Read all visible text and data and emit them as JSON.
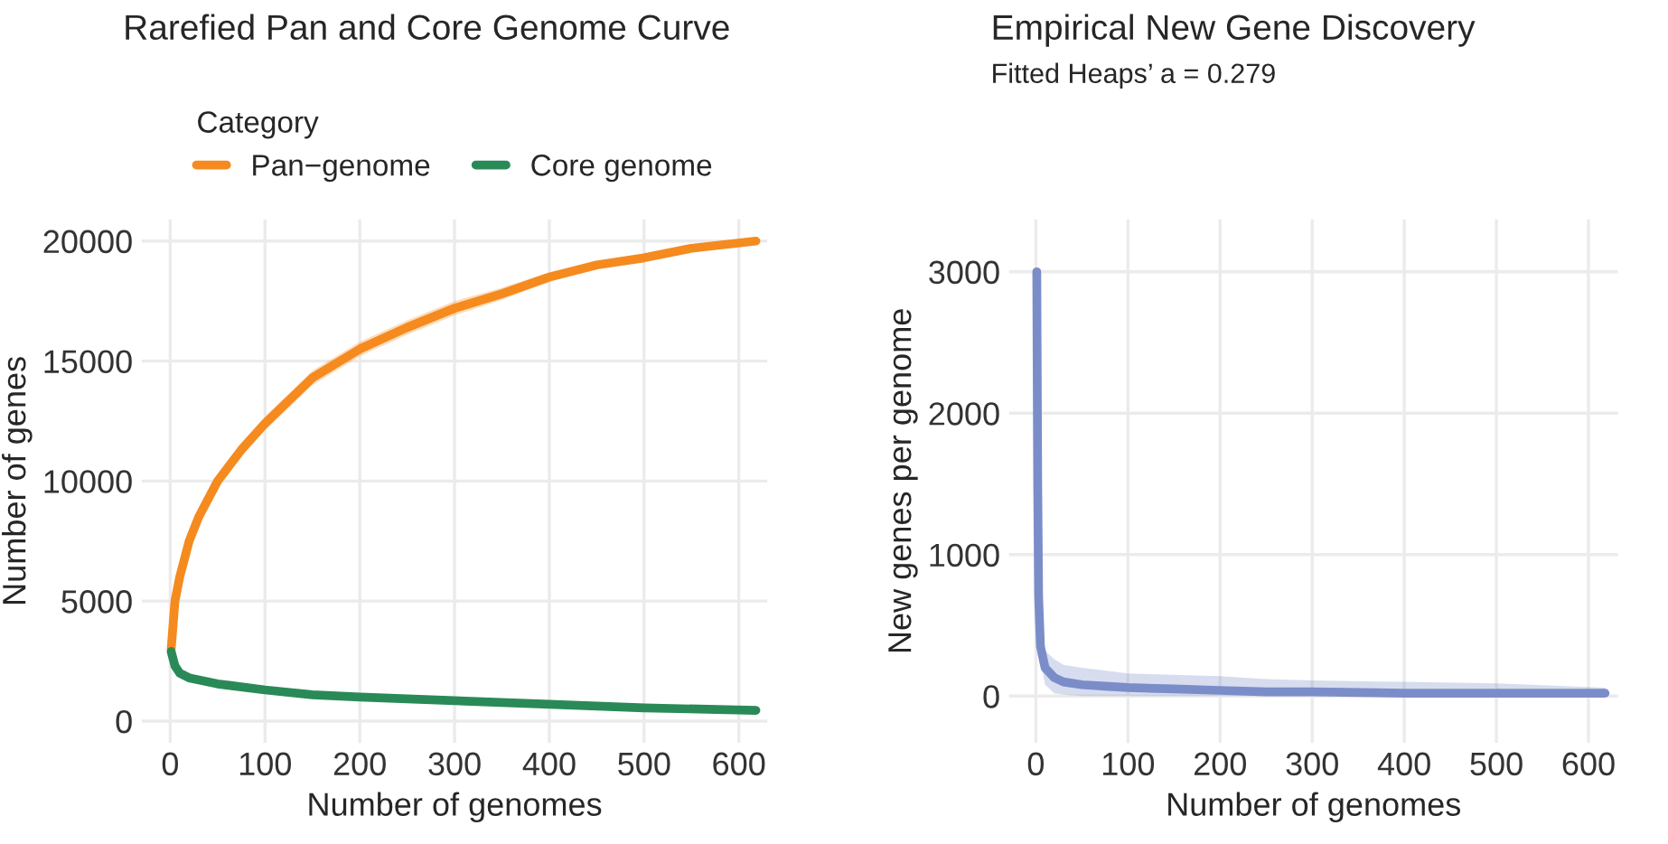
{
  "chart_data": [
    {
      "type": "line",
      "title": "Rarefied Pan and Core Genome Curve",
      "xlabel": "Number of genomes",
      "ylabel": "Number of genes",
      "legend_title": "Category",
      "legend": "top",
      "grid": true,
      "xlim": [
        -30,
        630
      ],
      "xticks": [
        0,
        100,
        200,
        300,
        400,
        500,
        600
      ],
      "ylim": [
        -900,
        20900
      ],
      "yticks": [
        0,
        5000,
        10000,
        15000,
        20000
      ],
      "series": [
        {
          "name": "Pan−genome",
          "color": "#f58a1f",
          "x": [
            1,
            5,
            10,
            20,
            30,
            50,
            75,
            100,
            150,
            200,
            250,
            300,
            350,
            400,
            450,
            500,
            550,
            618
          ],
          "values": [
            3000,
            5000,
            6000,
            7500,
            8500,
            10000,
            11300,
            12400,
            14300,
            15500,
            16400,
            17200,
            17800,
            18500,
            19000,
            19300,
            19700,
            20000
          ],
          "lower": [
            3000,
            4800,
            5700,
            7200,
            8200,
            9700,
            11000,
            12100,
            14000,
            15200,
            16100,
            16900,
            17550,
            18300,
            18850,
            19200,
            19650,
            20000
          ],
          "upper": [
            3000,
            5200,
            6300,
            7800,
            8800,
            10300,
            11600,
            12700,
            14600,
            15800,
            16700,
            17500,
            18050,
            18700,
            19150,
            19400,
            19750,
            20000
          ]
        },
        {
          "name": "Core genome",
          "color": "#2a8a57",
          "x": [
            1,
            5,
            10,
            20,
            50,
            100,
            150,
            200,
            300,
            400,
            500,
            618
          ],
          "values": [
            2900,
            2300,
            2000,
            1800,
            1550,
            1300,
            1100,
            1000,
            850,
            700,
            550,
            450
          ]
        }
      ]
    },
    {
      "type": "line",
      "title": "Empirical New Gene Discovery",
      "subtitle": "Fitted Heaps’ a = 0.279",
      "xlabel": "Number of genomes",
      "ylabel": "New genes per genome",
      "grid": true,
      "xlim": [
        -29,
        632
      ],
      "xticks": [
        0,
        100,
        200,
        300,
        400,
        500,
        600
      ],
      "ylim": [
        -330,
        3370
      ],
      "yticks": [
        0,
        1000,
        2000,
        3000
      ],
      "series": [
        {
          "color": "#7b8dc9",
          "x": [
            1,
            2,
            3,
            5,
            10,
            20,
            30,
            50,
            75,
            100,
            150,
            200,
            250,
            300,
            400,
            500,
            618
          ],
          "values": [
            3000,
            1500,
            700,
            350,
            200,
            130,
            100,
            80,
            70,
            60,
            50,
            40,
            30,
            30,
            20,
            20,
            20
          ],
          "lower": [
            3000,
            1400,
            600,
            250,
            80,
            20,
            10,
            0,
            0,
            0,
            0,
            0,
            0,
            0,
            0,
            0,
            0
          ],
          "upper": [
            3000,
            1600,
            800,
            450,
            320,
            260,
            220,
            200,
            180,
            160,
            150,
            140,
            120,
            110,
            100,
            90,
            60
          ]
        }
      ]
    }
  ]
}
